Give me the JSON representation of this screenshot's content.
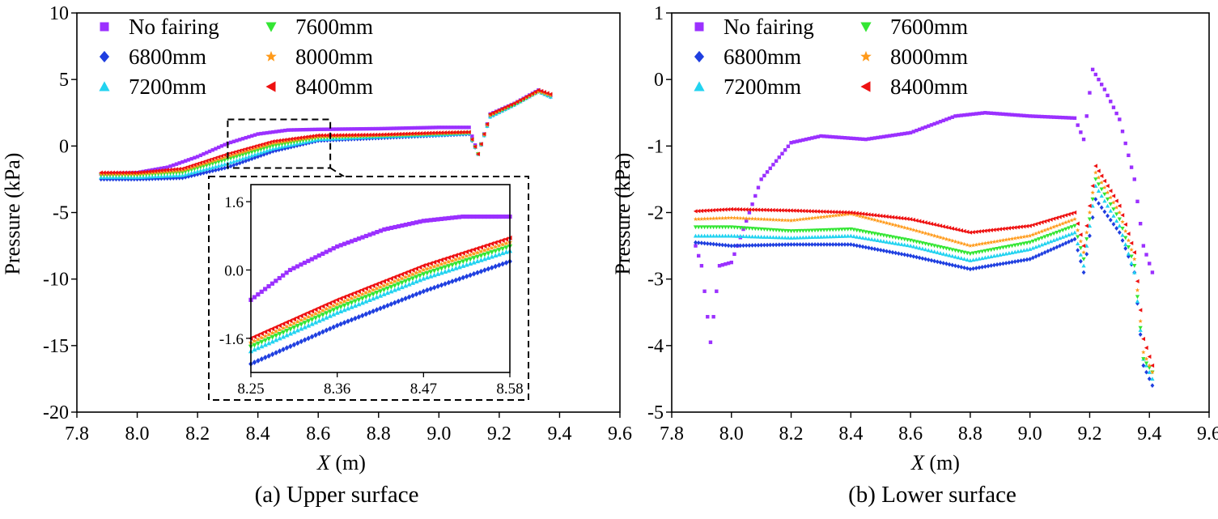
{
  "colors": {
    "no_fairing": "#9b30ff",
    "6800mm": "#1f3fe0",
    "7200mm": "#22d3f0",
    "7600mm": "#33e633",
    "8000mm": "#ff9a1a",
    "8400mm": "#ee1111"
  },
  "chart_data": [
    {
      "type": "scatter",
      "panel": "a",
      "caption": "(a) Upper surface",
      "xlabel_var": "X",
      "xlabel_unit": " (m)",
      "ylabel": "Pressure (kPa)",
      "xlim": [
        7.8,
        9.6
      ],
      "ylim": [
        -20,
        10
      ],
      "xticks": [
        "7.8",
        "8.0",
        "8.2",
        "8.4",
        "8.6",
        "8.8",
        "9.0",
        "9.2",
        "9.4",
        "9.6"
      ],
      "yticks": [
        "-20",
        "-15",
        "-10",
        "-5",
        "0",
        "5",
        "10"
      ],
      "legend": [
        "No fairing",
        "6800mm",
        "7200mm",
        "7600mm",
        "8000mm",
        "8400mm"
      ],
      "legend_position": "top-left",
      "series": [
        {
          "name": "No fairing",
          "marker": "square",
          "values": [
            [
              7.88,
              -2.1
            ],
            [
              8.0,
              -2.0
            ],
            [
              8.1,
              -1.6
            ],
            [
              8.2,
              -0.8
            ],
            [
              8.3,
              0.2
            ],
            [
              8.4,
              0.9
            ],
            [
              8.5,
              1.2
            ],
            [
              8.6,
              1.25
            ],
            [
              8.8,
              1.3
            ],
            [
              9.0,
              1.4
            ],
            [
              9.1,
              1.4
            ],
            [
              9.13,
              -0.6
            ],
            [
              9.17,
              2.4
            ],
            [
              9.25,
              3.2
            ],
            [
              9.33,
              4.2
            ],
            [
              9.37,
              3.8
            ]
          ]
        },
        {
          "name": "6800mm",
          "marker": "diamond",
          "values": [
            [
              7.88,
              -2.5
            ],
            [
              8.0,
              -2.5
            ],
            [
              8.15,
              -2.4
            ],
            [
              8.3,
              -1.6
            ],
            [
              8.45,
              -0.4
            ],
            [
              8.6,
              0.4
            ],
            [
              8.8,
              0.6
            ],
            [
              9.0,
              0.8
            ],
            [
              9.1,
              0.9
            ],
            [
              9.13,
              -0.6
            ],
            [
              9.17,
              2.2
            ],
            [
              9.25,
              3.1
            ],
            [
              9.33,
              4.1
            ],
            [
              9.37,
              3.7
            ]
          ]
        },
        {
          "name": "7200mm",
          "marker": "triangle-up",
          "values": [
            [
              7.88,
              -2.35
            ],
            [
              8.0,
              -2.35
            ],
            [
              8.15,
              -2.2
            ],
            [
              8.3,
              -1.3
            ],
            [
              8.45,
              -0.2
            ],
            [
              8.6,
              0.5
            ],
            [
              8.8,
              0.7
            ],
            [
              9.0,
              0.85
            ],
            [
              9.1,
              0.95
            ],
            [
              9.13,
              -0.6
            ],
            [
              9.17,
              2.2
            ],
            [
              9.25,
              3.1
            ],
            [
              9.33,
              4.1
            ],
            [
              9.37,
              3.7
            ]
          ]
        },
        {
          "name": "7600mm",
          "marker": "triangle-down",
          "values": [
            [
              7.88,
              -2.2
            ],
            [
              8.0,
              -2.2
            ],
            [
              8.15,
              -2.0
            ],
            [
              8.3,
              -1.0
            ],
            [
              8.45,
              0.0
            ],
            [
              8.6,
              0.6
            ],
            [
              8.8,
              0.75
            ],
            [
              9.0,
              0.9
            ],
            [
              9.1,
              1.0
            ],
            [
              9.13,
              -0.6
            ],
            [
              9.17,
              2.3
            ],
            [
              9.25,
              3.1
            ],
            [
              9.33,
              4.1
            ],
            [
              9.37,
              3.8
            ]
          ]
        },
        {
          "name": "8000mm",
          "marker": "star",
          "values": [
            [
              7.88,
              -2.1
            ],
            [
              8.0,
              -2.1
            ],
            [
              8.15,
              -1.85
            ],
            [
              8.3,
              -0.8
            ],
            [
              8.45,
              0.2
            ],
            [
              8.6,
              0.7
            ],
            [
              8.8,
              0.8
            ],
            [
              9.0,
              0.95
            ],
            [
              9.1,
              1.0
            ],
            [
              9.13,
              -0.6
            ],
            [
              9.17,
              2.3
            ],
            [
              9.25,
              3.2
            ],
            [
              9.33,
              4.1
            ],
            [
              9.37,
              3.8
            ]
          ]
        },
        {
          "name": "8400mm",
          "marker": "triangle-left",
          "values": [
            [
              7.88,
              -2.0
            ],
            [
              8.0,
              -2.0
            ],
            [
              8.15,
              -1.7
            ],
            [
              8.3,
              -0.6
            ],
            [
              8.45,
              0.35
            ],
            [
              8.6,
              0.8
            ],
            [
              8.8,
              0.85
            ],
            [
              9.0,
              1.0
            ],
            [
              9.1,
              1.05
            ],
            [
              9.13,
              -0.6
            ],
            [
              9.17,
              2.4
            ],
            [
              9.25,
              3.2
            ],
            [
              9.33,
              4.2
            ],
            [
              9.37,
              3.9
            ]
          ]
        }
      ],
      "inset": {
        "xlim": [
          8.25,
          8.58
        ],
        "ylim": [
          -2.4,
          2.0
        ],
        "xticks": [
          "8.25",
          "8.36",
          "8.47",
          "8.58"
        ],
        "yticks": [
          "-1.6",
          "0.0",
          "1.6"
        ],
        "series": [
          {
            "name": "No fairing",
            "values": [
              [
                8.25,
                -0.7
              ],
              [
                8.3,
                0.0
              ],
              [
                8.36,
                0.55
              ],
              [
                8.42,
                0.95
              ],
              [
                8.47,
                1.15
              ],
              [
                8.52,
                1.25
              ],
              [
                8.58,
                1.25
              ]
            ]
          },
          {
            "name": "6800mm",
            "values": [
              [
                8.25,
                -2.2
              ],
              [
                8.36,
                -1.3
              ],
              [
                8.47,
                -0.5
              ],
              [
                8.58,
                0.2
              ]
            ]
          },
          {
            "name": "7200mm",
            "values": [
              [
                8.25,
                -1.9
              ],
              [
                8.36,
                -1.0
              ],
              [
                8.47,
                -0.2
              ],
              [
                8.58,
                0.45
              ]
            ]
          },
          {
            "name": "7600mm",
            "values": [
              [
                8.25,
                -1.8
              ],
              [
                8.36,
                -0.9
              ],
              [
                8.47,
                -0.1
              ],
              [
                8.58,
                0.55
              ]
            ]
          },
          {
            "name": "8000mm",
            "values": [
              [
                8.25,
                -1.7
              ],
              [
                8.36,
                -0.8
              ],
              [
                8.47,
                0.0
              ],
              [
                8.58,
                0.65
              ]
            ]
          },
          {
            "name": "8400mm",
            "values": [
              [
                8.25,
                -1.6
              ],
              [
                8.36,
                -0.7
              ],
              [
                8.47,
                0.1
              ],
              [
                8.58,
                0.75
              ]
            ]
          }
        ]
      }
    },
    {
      "type": "scatter",
      "panel": "b",
      "caption": "(b) Lower surface",
      "xlabel_var": "X",
      "xlabel_unit": " (m)",
      "ylabel": "Pressure (kPa)",
      "xlim": [
        7.8,
        9.6
      ],
      "ylim": [
        -5,
        1
      ],
      "xticks": [
        "7.8",
        "8.0",
        "8.2",
        "8.4",
        "8.6",
        "8.8",
        "9.0",
        "9.2",
        "9.4",
        "9.6"
      ],
      "yticks": [
        "-5",
        "-4",
        "-3",
        "-2",
        "-1",
        "0",
        "1"
      ],
      "legend": [
        "No fairing",
        "6800mm",
        "7200mm",
        "7600mm",
        "8000mm",
        "8400mm"
      ],
      "legend_position": "top-left",
      "series": [
        {
          "name": "No fairing",
          "marker": "square",
          "values": [
            [
              7.88,
              -2.5
            ],
            [
              7.9,
              -2.8
            ],
            [
              7.93,
              -3.95
            ],
            [
              7.96,
              -2.8
            ],
            [
              8.0,
              -2.75
            ],
            [
              8.1,
              -1.5
            ],
            [
              8.2,
              -0.95
            ],
            [
              8.3,
              -0.85
            ],
            [
              8.45,
              -0.9
            ],
            [
              8.6,
              -0.8
            ],
            [
              8.75,
              -0.55
            ],
            [
              8.85,
              -0.5
            ],
            [
              9.0,
              -0.55
            ],
            [
              9.15,
              -0.58
            ],
            [
              9.18,
              -0.9
            ],
            [
              9.21,
              0.15
            ],
            [
              9.25,
              -0.15
            ],
            [
              9.3,
              -0.6
            ],
            [
              9.35,
              -1.5
            ],
            [
              9.38,
              -2.5
            ],
            [
              9.41,
              -2.9
            ]
          ]
        },
        {
          "name": "6800mm",
          "marker": "diamond",
          "values": [
            [
              7.88,
              -2.45
            ],
            [
              8.0,
              -2.5
            ],
            [
              8.2,
              -2.48
            ],
            [
              8.4,
              -2.48
            ],
            [
              8.6,
              -2.65
            ],
            [
              8.8,
              -2.85
            ],
            [
              9.0,
              -2.7
            ],
            [
              9.15,
              -2.4
            ],
            [
              9.18,
              -2.9
            ],
            [
              9.22,
              -1.8
            ],
            [
              9.3,
              -2.3
            ],
            [
              9.35,
              -2.9
            ],
            [
              9.38,
              -4.3
            ],
            [
              9.41,
              -4.6
            ]
          ]
        },
        {
          "name": "7200mm",
          "marker": "triangle-up",
          "values": [
            [
              7.88,
              -2.35
            ],
            [
              8.0,
              -2.35
            ],
            [
              8.2,
              -2.38
            ],
            [
              8.4,
              -2.35
            ],
            [
              8.6,
              -2.5
            ],
            [
              8.8,
              -2.72
            ],
            [
              9.0,
              -2.55
            ],
            [
              9.15,
              -2.3
            ],
            [
              9.18,
              -2.8
            ],
            [
              9.22,
              -1.6
            ],
            [
              9.3,
              -2.2
            ],
            [
              9.35,
              -2.9
            ],
            [
              9.38,
              -4.2
            ],
            [
              9.41,
              -4.5
            ]
          ]
        },
        {
          "name": "7600mm",
          "marker": "triangle-down",
          "values": [
            [
              7.88,
              -2.22
            ],
            [
              8.0,
              -2.22
            ],
            [
              8.2,
              -2.28
            ],
            [
              8.4,
              -2.25
            ],
            [
              8.6,
              -2.42
            ],
            [
              8.8,
              -2.62
            ],
            [
              9.0,
              -2.45
            ],
            [
              9.15,
              -2.2
            ],
            [
              9.18,
              -2.7
            ],
            [
              9.22,
              -1.5
            ],
            [
              9.3,
              -2.1
            ],
            [
              9.35,
              -2.8
            ],
            [
              9.38,
              -4.2
            ],
            [
              9.41,
              -4.4
            ]
          ]
        },
        {
          "name": "8000mm",
          "marker": "star",
          "values": [
            [
              7.88,
              -2.1
            ],
            [
              8.0,
              -2.08
            ],
            [
              8.2,
              -2.12
            ],
            [
              8.4,
              -2.02
            ],
            [
              8.6,
              -2.25
            ],
            [
              8.8,
              -2.5
            ],
            [
              9.0,
              -2.35
            ],
            [
              9.15,
              -2.1
            ],
            [
              9.18,
              -2.6
            ],
            [
              9.22,
              -1.4
            ],
            [
              9.3,
              -2.0
            ],
            [
              9.35,
              -2.7
            ],
            [
              9.38,
              -4.1
            ],
            [
              9.41,
              -4.4
            ]
          ]
        },
        {
          "name": "8400mm",
          "marker": "triangle-left",
          "values": [
            [
              7.88,
              -1.98
            ],
            [
              8.0,
              -1.95
            ],
            [
              8.2,
              -1.97
            ],
            [
              8.4,
              -2.0
            ],
            [
              8.6,
              -2.1
            ],
            [
              8.8,
              -2.3
            ],
            [
              9.0,
              -2.2
            ],
            [
              9.15,
              -2.0
            ],
            [
              9.18,
              -2.5
            ],
            [
              9.22,
              -1.3
            ],
            [
              9.3,
              -1.9
            ],
            [
              9.35,
              -2.6
            ],
            [
              9.38,
              -3.9
            ],
            [
              9.41,
              -4.3
            ]
          ]
        }
      ]
    }
  ]
}
